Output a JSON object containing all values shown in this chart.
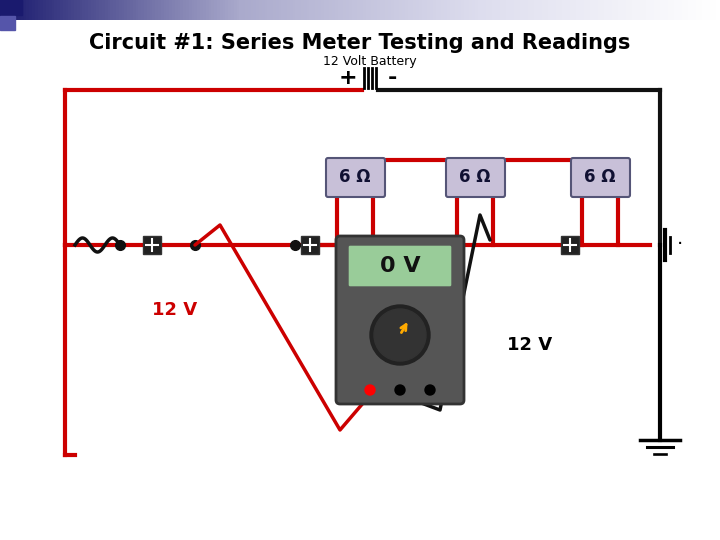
{
  "title": "Circuit #1: Series Meter Testing and Readings",
  "battery_label": "12 Volt Battery",
  "battery_plus": "+",
  "battery_minus": "-",
  "resistor_label": "6 Ω",
  "voltage_label_left": "12 V",
  "voltage_label_right": "12 V",
  "meter_display": "0 V",
  "bg_color": "#ffffff",
  "header_color_left": "#1a1a6e",
  "header_color_right": "#ccccdd",
  "wire_red": "#cc0000",
  "wire_black": "#111111",
  "resistor_box_fill": "#c8c0d8",
  "resistor_box_edge": "#555577",
  "node_color": "#111111",
  "meter_body": "#555555",
  "meter_display_bg": "#88bb88",
  "title_fontsize": 15,
  "subtitle_fontsize": 9,
  "resistor_fontsize": 12,
  "volt_fontsize": 13
}
